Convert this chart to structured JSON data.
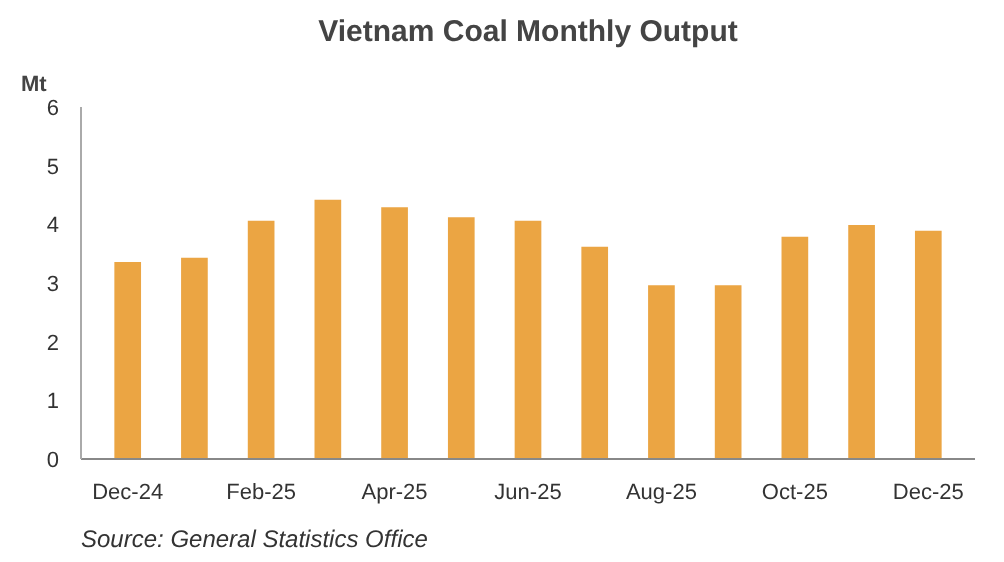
{
  "chart_data": {
    "type": "bar",
    "title": "Vietnam Coal Monthly Output",
    "ylabel": "Mt",
    "categories": [
      "Dec-24",
      null,
      "Feb-25",
      null,
      "Apr-25",
      null,
      "Jun-25",
      null,
      "Aug-25",
      null,
      "Oct-25",
      null,
      "Dec-25"
    ],
    "values": [
      3.36,
      3.43,
      4.06,
      4.42,
      4.29,
      4.12,
      4.06,
      3.62,
      2.96,
      2.96,
      3.79,
      3.99,
      3.89
    ],
    "color": "#eba543",
    "ylim": [
      0,
      6
    ],
    "yticks": [
      0,
      1,
      2,
      3,
      4,
      5,
      6
    ],
    "grid": false,
    "annotations": [
      "Source: General Statistics Office"
    ]
  }
}
